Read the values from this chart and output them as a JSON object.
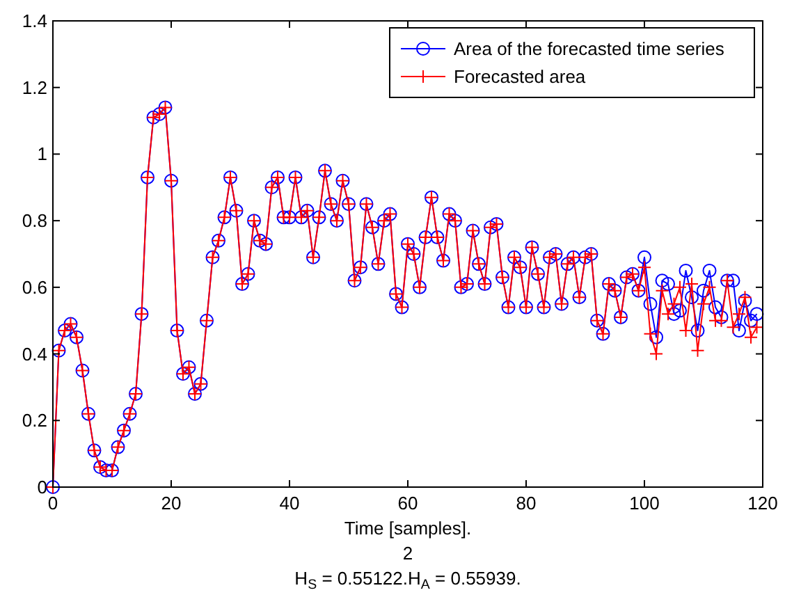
{
  "chart_data": {
    "type": "line",
    "xlabel": "Time [samples].",
    "annotations": [
      "2",
      "H$_{S}$ = 0.55122.H$_{A}$ = 0.55939."
    ],
    "x": [
      0,
      1,
      2,
      3,
      4,
      5,
      6,
      7,
      8,
      9,
      10,
      11,
      12,
      13,
      14,
      15,
      16,
      17,
      18,
      19,
      20,
      21,
      22,
      23,
      24,
      25,
      26,
      27,
      28,
      29,
      30,
      31,
      32,
      33,
      34,
      35,
      36,
      37,
      38,
      39,
      40,
      41,
      42,
      43,
      44,
      45,
      46,
      47,
      48,
      49,
      50,
      51,
      52,
      53,
      54,
      55,
      56,
      57,
      58,
      59,
      60,
      61,
      62,
      63,
      64,
      65,
      66,
      67,
      68,
      69,
      70,
      71,
      72,
      73,
      74,
      75,
      76,
      77,
      78,
      79,
      80,
      81,
      82,
      83,
      84,
      85,
      86,
      87,
      88,
      89,
      90,
      91,
      92,
      93,
      94,
      95,
      96,
      97,
      98,
      99,
      100,
      101,
      102,
      103,
      104,
      105,
      106,
      107,
      108,
      109,
      110,
      111,
      112,
      113,
      114,
      115,
      116,
      117,
      118,
      119
    ],
    "series": [
      {
        "name": "Area of the forecasted time series",
        "color": "#0000ff",
        "marker": "circle",
        "values": [
          0,
          0.41,
          0.47,
          0.49,
          0.45,
          0.35,
          0.22,
          0.11,
          0.06,
          0.05,
          0.05,
          0.12,
          0.17,
          0.22,
          0.28,
          0.52,
          0.93,
          1.11,
          1.12,
          1.14,
          0.92,
          0.47,
          0.34,
          0.36,
          0.28,
          0.31,
          0.5,
          0.69,
          0.74,
          0.81,
          0.93,
          0.83,
          0.61,
          0.64,
          0.8,
          0.74,
          0.73,
          0.9,
          0.93,
          0.81,
          0.81,
          0.93,
          0.81,
          0.83,
          0.69,
          0.81,
          0.95,
          0.85,
          0.8,
          0.92,
          0.85,
          0.62,
          0.66,
          0.85,
          0.78,
          0.67,
          0.8,
          0.82,
          0.58,
          0.54,
          0.73,
          0.7,
          0.6,
          0.75,
          0.87,
          0.75,
          0.68,
          0.82,
          0.8,
          0.6,
          0.61,
          0.77,
          0.67,
          0.61,
          0.78,
          0.79,
          0.63,
          0.54,
          0.69,
          0.66,
          0.54,
          0.72,
          0.64,
          0.54,
          0.69,
          0.7,
          0.55,
          0.67,
          0.69,
          0.57,
          0.69,
          0.7,
          0.5,
          0.46,
          0.61,
          0.59,
          0.51,
          0.63,
          0.64,
          0.59,
          0.69,
          0.55,
          0.45,
          0.62,
          0.61,
          0.52,
          0.53,
          0.65,
          0.57,
          0.47,
          0.59,
          0.65,
          0.54,
          0.51,
          0.62,
          0.62,
          0.47,
          0.56,
          0.5,
          0.52
        ]
      },
      {
        "name": "Forecasted area",
        "color": "#ff0000",
        "marker": "cross",
        "values": [
          0,
          0.41,
          0.47,
          0.49,
          0.45,
          0.35,
          0.22,
          0.11,
          0.06,
          0.05,
          0.05,
          0.12,
          0.17,
          0.22,
          0.28,
          0.52,
          0.93,
          1.11,
          1.12,
          1.14,
          0.92,
          0.47,
          0.34,
          0.36,
          0.28,
          0.31,
          0.5,
          0.69,
          0.74,
          0.81,
          0.93,
          0.83,
          0.61,
          0.64,
          0.8,
          0.74,
          0.73,
          0.9,
          0.93,
          0.81,
          0.81,
          0.93,
          0.81,
          0.83,
          0.69,
          0.81,
          0.95,
          0.85,
          0.8,
          0.92,
          0.85,
          0.62,
          0.66,
          0.85,
          0.78,
          0.67,
          0.8,
          0.82,
          0.58,
          0.54,
          0.73,
          0.7,
          0.6,
          0.75,
          0.87,
          0.75,
          0.68,
          0.82,
          0.8,
          0.6,
          0.61,
          0.77,
          0.67,
          0.61,
          0.78,
          0.79,
          0.63,
          0.54,
          0.69,
          0.66,
          0.54,
          0.72,
          0.64,
          0.54,
          0.69,
          0.7,
          0.55,
          0.67,
          0.69,
          0.57,
          0.69,
          0.7,
          0.5,
          0.46,
          0.61,
          0.59,
          0.51,
          0.63,
          0.64,
          0.59,
          0.66,
          0.46,
          0.4,
          0.59,
          0.52,
          0.55,
          0.6,
          0.47,
          0.61,
          0.41,
          0.55,
          0.6,
          0.5,
          0.5,
          0.62,
          0.48,
          0.52,
          0.57,
          0.45,
          0.48
        ]
      }
    ],
    "xlim": [
      0,
      120
    ],
    "xticks": [
      0,
      20,
      40,
      60,
      80,
      100,
      120
    ],
    "ylim": [
      0,
      1.4
    ],
    "yticks": [
      0,
      0.2,
      0.4,
      0.6,
      0.8,
      1,
      1.2,
      1.4
    ],
    "grid": false,
    "legend": "top right",
    "line_style": "solid"
  }
}
